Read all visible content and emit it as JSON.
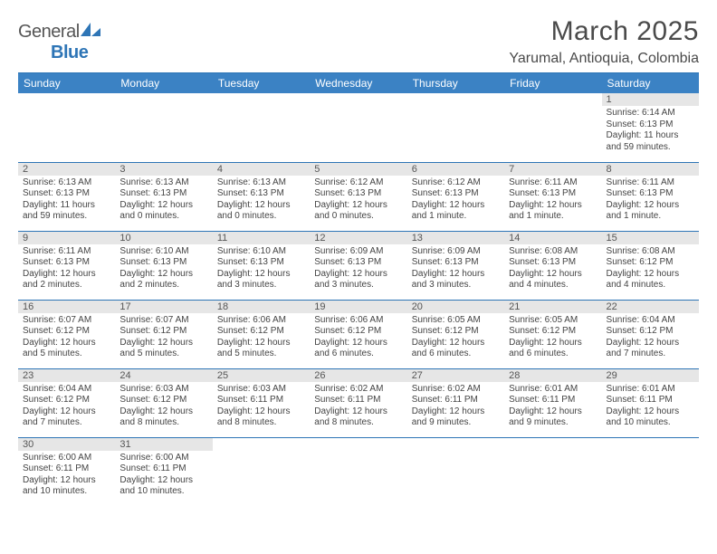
{
  "brand": {
    "general": "General",
    "blue": "Blue"
  },
  "title": "March 2025",
  "location": "Yarumal, Antioquia, Colombia",
  "colors": {
    "header_bg": "#3b82c4",
    "header_text": "#ffffff",
    "border": "#2e75b6",
    "daynum_bg": "#e6e6e6",
    "text": "#444444",
    "logo_blue": "#2e75b6"
  },
  "day_labels": [
    "Sunday",
    "Monday",
    "Tuesday",
    "Wednesday",
    "Thursday",
    "Friday",
    "Saturday"
  ],
  "weeks": [
    [
      null,
      null,
      null,
      null,
      null,
      null,
      {
        "n": "1",
        "sr": "Sunrise: 6:14 AM",
        "ss": "Sunset: 6:13 PM",
        "dl": "Daylight: 11 hours and 59 minutes."
      }
    ],
    [
      {
        "n": "2",
        "sr": "Sunrise: 6:13 AM",
        "ss": "Sunset: 6:13 PM",
        "dl": "Daylight: 11 hours and 59 minutes."
      },
      {
        "n": "3",
        "sr": "Sunrise: 6:13 AM",
        "ss": "Sunset: 6:13 PM",
        "dl": "Daylight: 12 hours and 0 minutes."
      },
      {
        "n": "4",
        "sr": "Sunrise: 6:13 AM",
        "ss": "Sunset: 6:13 PM",
        "dl": "Daylight: 12 hours and 0 minutes."
      },
      {
        "n": "5",
        "sr": "Sunrise: 6:12 AM",
        "ss": "Sunset: 6:13 PM",
        "dl": "Daylight: 12 hours and 0 minutes."
      },
      {
        "n": "6",
        "sr": "Sunrise: 6:12 AM",
        "ss": "Sunset: 6:13 PM",
        "dl": "Daylight: 12 hours and 1 minute."
      },
      {
        "n": "7",
        "sr": "Sunrise: 6:11 AM",
        "ss": "Sunset: 6:13 PM",
        "dl": "Daylight: 12 hours and 1 minute."
      },
      {
        "n": "8",
        "sr": "Sunrise: 6:11 AM",
        "ss": "Sunset: 6:13 PM",
        "dl": "Daylight: 12 hours and 1 minute."
      }
    ],
    [
      {
        "n": "9",
        "sr": "Sunrise: 6:11 AM",
        "ss": "Sunset: 6:13 PM",
        "dl": "Daylight: 12 hours and 2 minutes."
      },
      {
        "n": "10",
        "sr": "Sunrise: 6:10 AM",
        "ss": "Sunset: 6:13 PM",
        "dl": "Daylight: 12 hours and 2 minutes."
      },
      {
        "n": "11",
        "sr": "Sunrise: 6:10 AM",
        "ss": "Sunset: 6:13 PM",
        "dl": "Daylight: 12 hours and 3 minutes."
      },
      {
        "n": "12",
        "sr": "Sunrise: 6:09 AM",
        "ss": "Sunset: 6:13 PM",
        "dl": "Daylight: 12 hours and 3 minutes."
      },
      {
        "n": "13",
        "sr": "Sunrise: 6:09 AM",
        "ss": "Sunset: 6:13 PM",
        "dl": "Daylight: 12 hours and 3 minutes."
      },
      {
        "n": "14",
        "sr": "Sunrise: 6:08 AM",
        "ss": "Sunset: 6:13 PM",
        "dl": "Daylight: 12 hours and 4 minutes."
      },
      {
        "n": "15",
        "sr": "Sunrise: 6:08 AM",
        "ss": "Sunset: 6:12 PM",
        "dl": "Daylight: 12 hours and 4 minutes."
      }
    ],
    [
      {
        "n": "16",
        "sr": "Sunrise: 6:07 AM",
        "ss": "Sunset: 6:12 PM",
        "dl": "Daylight: 12 hours and 5 minutes."
      },
      {
        "n": "17",
        "sr": "Sunrise: 6:07 AM",
        "ss": "Sunset: 6:12 PM",
        "dl": "Daylight: 12 hours and 5 minutes."
      },
      {
        "n": "18",
        "sr": "Sunrise: 6:06 AM",
        "ss": "Sunset: 6:12 PM",
        "dl": "Daylight: 12 hours and 5 minutes."
      },
      {
        "n": "19",
        "sr": "Sunrise: 6:06 AM",
        "ss": "Sunset: 6:12 PM",
        "dl": "Daylight: 12 hours and 6 minutes."
      },
      {
        "n": "20",
        "sr": "Sunrise: 6:05 AM",
        "ss": "Sunset: 6:12 PM",
        "dl": "Daylight: 12 hours and 6 minutes."
      },
      {
        "n": "21",
        "sr": "Sunrise: 6:05 AM",
        "ss": "Sunset: 6:12 PM",
        "dl": "Daylight: 12 hours and 6 minutes."
      },
      {
        "n": "22",
        "sr": "Sunrise: 6:04 AM",
        "ss": "Sunset: 6:12 PM",
        "dl": "Daylight: 12 hours and 7 minutes."
      }
    ],
    [
      {
        "n": "23",
        "sr": "Sunrise: 6:04 AM",
        "ss": "Sunset: 6:12 PM",
        "dl": "Daylight: 12 hours and 7 minutes."
      },
      {
        "n": "24",
        "sr": "Sunrise: 6:03 AM",
        "ss": "Sunset: 6:12 PM",
        "dl": "Daylight: 12 hours and 8 minutes."
      },
      {
        "n": "25",
        "sr": "Sunrise: 6:03 AM",
        "ss": "Sunset: 6:11 PM",
        "dl": "Daylight: 12 hours and 8 minutes."
      },
      {
        "n": "26",
        "sr": "Sunrise: 6:02 AM",
        "ss": "Sunset: 6:11 PM",
        "dl": "Daylight: 12 hours and 8 minutes."
      },
      {
        "n": "27",
        "sr": "Sunrise: 6:02 AM",
        "ss": "Sunset: 6:11 PM",
        "dl": "Daylight: 12 hours and 9 minutes."
      },
      {
        "n": "28",
        "sr": "Sunrise: 6:01 AM",
        "ss": "Sunset: 6:11 PM",
        "dl": "Daylight: 12 hours and 9 minutes."
      },
      {
        "n": "29",
        "sr": "Sunrise: 6:01 AM",
        "ss": "Sunset: 6:11 PM",
        "dl": "Daylight: 12 hours and 10 minutes."
      }
    ],
    [
      {
        "n": "30",
        "sr": "Sunrise: 6:00 AM",
        "ss": "Sunset: 6:11 PM",
        "dl": "Daylight: 12 hours and 10 minutes."
      },
      {
        "n": "31",
        "sr": "Sunrise: 6:00 AM",
        "ss": "Sunset: 6:11 PM",
        "dl": "Daylight: 12 hours and 10 minutes."
      },
      null,
      null,
      null,
      null,
      null
    ]
  ]
}
